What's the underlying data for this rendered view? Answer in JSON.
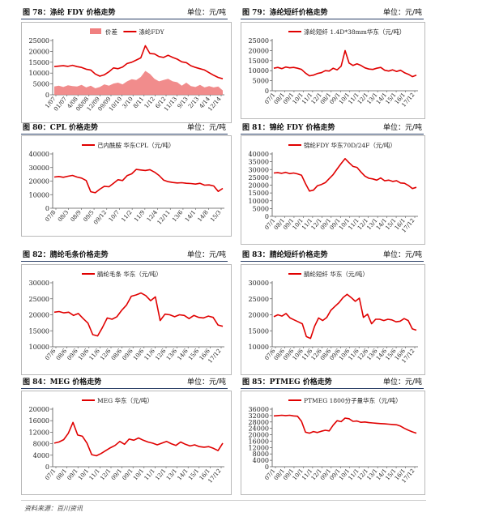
{
  "footer": "资料来源：百川资讯",
  "panels": [
    {
      "id": "fig78",
      "title": "图 78：涤纶 FDY 价格走势",
      "unit": "单位：元/吨",
      "chart_data": {
        "type": "line",
        "legend": [
          "价差",
          "涤纶FDY"
        ],
        "legend_position": "top-center",
        "ylim": [
          0,
          25000
        ],
        "yticks": [
          0,
          5000,
          10000,
          15000,
          20000,
          25000
        ],
        "xticks": [
          "1/07",
          "01/07",
          "4/08",
          "08/08",
          "12/09",
          "09/09",
          "10/10",
          "3/10",
          "8/11",
          "1/12",
          "6/12",
          "11/13",
          "9/13",
          "2/13",
          "4/14",
          "12/14"
        ],
        "series": [
          {
            "name": "涤纶FDY",
            "color": "#e00000",
            "kind": "line",
            "values": [
              13000,
              13200,
              13400,
              13100,
              13600,
              13000,
              12600,
              11800,
              11400,
              9600,
              8600,
              9200,
              10600,
              12400,
              12000,
              12800,
              14400,
              15000,
              16000,
              17000,
              22600,
              19000,
              18800,
              17600,
              17200,
              18200,
              17200,
              16400,
              15200,
              14800,
              13400,
              12600,
              12000,
              11400,
              10200,
              9000,
              8000,
              7400
            ]
          },
          {
            "name": "价差",
            "color": "#f08080",
            "kind": "area",
            "values": [
              3800,
              4200,
              3600,
              4400,
              4000,
              3800,
              4600,
              3400,
              4200,
              3000,
              3600,
              4800,
              4200,
              5200,
              5600,
              4800,
              6200,
              7200,
              6800,
              8200,
              11000,
              9600,
              7400,
              6200,
              6800,
              7400,
              6200,
              5800,
              4200,
              5600,
              4000,
              3600,
              4600,
              3400,
              4000,
              3400,
              3800,
              2000
            ]
          }
        ]
      }
    },
    {
      "id": "fig79",
      "title": "图 79：涤纶短纤价格走势",
      "unit": "单位：元/吨",
      "chart_data": {
        "type": "line",
        "legend": [
          "涤纶短纤 1.4D*38mm华东（元/吨）"
        ],
        "legend_position": "top-center",
        "ylim": [
          0,
          25000
        ],
        "yticks": [
          0,
          5000,
          10000,
          15000,
          20000,
          25000
        ],
        "xticks": [
          "07/1",
          "08/1",
          "09/1",
          "10/1",
          "11/1",
          "12/1",
          "08/1",
          "09/1",
          "10/1",
          "11/1",
          "12/1",
          "13/1",
          "14/1",
          "15/1",
          "16/1",
          "17/12"
        ],
        "series": [
          {
            "name": "涤纶短纤 1.4D*38mm华东（元/吨）",
            "color": "#e00000",
            "kind": "line",
            "values": [
              11200,
              11600,
              11000,
              11800,
              11400,
              11600,
              11200,
              10600,
              8800,
              7400,
              7800,
              8600,
              9000,
              10000,
              9800,
              11200,
              10400,
              12200,
              20000,
              13800,
              12600,
              13400,
              12600,
              11400,
              10800,
              10600,
              11200,
              11600,
              10200,
              9800,
              10400,
              9600,
              10200,
              9000,
              8200,
              7000,
              7800
            ]
          }
        ]
      }
    },
    {
      "id": "fig80",
      "title": "图 80：CPL 价格走势",
      "unit": "单位：元/吨",
      "chart_data": {
        "type": "line",
        "legend": [
          "己内酰胺 华东CPL（元/吨）"
        ],
        "legend_position": "top-center",
        "ylim": [
          0,
          40000
        ],
        "yticks": [
          0,
          10000,
          20000,
          30000,
          40000
        ],
        "xticks": [
          "07/8",
          "08/3",
          "08/9",
          "09/5",
          "09/12",
          "10/7",
          "11/2",
          "11/9",
          "12/4",
          "12/11",
          "13/6",
          "14/1",
          "14/8",
          "15/3"
        ],
        "series": [
          {
            "name": "己内酰胺 华东CPL（元/吨）",
            "color": "#e00000",
            "kind": "line",
            "values": [
              23000,
              23400,
              22800,
              23600,
              24200,
              23000,
              22200,
              20400,
              12200,
              11400,
              14000,
              16200,
              15800,
              18400,
              21000,
              20400,
              24000,
              25400,
              28600,
              28200,
              27800,
              28400,
              26600,
              24200,
              20800,
              19600,
              19000,
              18600,
              18800,
              18400,
              18200,
              17800,
              18400,
              17000,
              17200,
              16400,
              12400,
              14600
            ]
          }
        ]
      }
    },
    {
      "id": "fig81",
      "title": "图 81：锦纶 FDY 价格走势",
      "unit": "单位：元/吨",
      "chart_data": {
        "type": "line",
        "legend": [
          "锦纶FDY 华东70D/24F（元/吨）"
        ],
        "legend_position": "top-center",
        "ylim": [
          0,
          40000
        ],
        "yticks": [
          0,
          5000,
          10000,
          15000,
          20000,
          25000,
          30000,
          35000,
          40000
        ],
        "xticks": [
          "07/1",
          "08/1",
          "09/1",
          "10/1",
          "11/1",
          "12/1",
          "09/1",
          "09/1",
          "10/1",
          "11/1",
          "12/1",
          "13/1",
          "14/1",
          "15/1",
          "16/1",
          "17/12"
        ],
        "series": [
          {
            "name": "锦纶FDY 华东70D/24F（元/吨）",
            "color": "#e00000",
            "kind": "line",
            "values": [
              27800,
              28000,
              27600,
              28200,
              27400,
              27800,
              27200,
              26400,
              21000,
              16200,
              16800,
              19600,
              20400,
              21600,
              24200,
              26800,
              30400,
              33800,
              37000,
              34400,
              32000,
              31400,
              28400,
              25800,
              24400,
              24000,
              23200,
              24600,
              22800,
              23200,
              22400,
              22800,
              21400,
              21200,
              19800,
              17800,
              18600
            ]
          }
        ]
      }
    },
    {
      "id": "fig82",
      "title": "图 82：腈纶毛条价格走势",
      "unit": "单位：元/吨",
      "chart_data": {
        "type": "line",
        "legend": [
          "腈纶毛条 华东（元/吨）"
        ],
        "legend_position": "top-center",
        "ylim": [
          10000,
          30000
        ],
        "yticks": [
          10000,
          15000,
          20000,
          25000,
          30000
        ],
        "xticks": [
          "07/6",
          "08/6",
          "09/6",
          "10/6",
          "11/6",
          "12/6",
          "08/6",
          "09/6",
          "10/6",
          "11/6",
          "12/6",
          "13/6",
          "14/6",
          "15/6",
          "16/6",
          "17/12"
        ],
        "series": [
          {
            "name": "腈纶毛条 华东（元/吨）",
            "color": "#e00000",
            "kind": "line",
            "values": [
              20800,
              21000,
              20600,
              20800,
              19800,
              20400,
              18800,
              17400,
              13800,
              13400,
              16000,
              19000,
              18600,
              19400,
              21400,
              23000,
              25800,
              26200,
              26800,
              26000,
              24400,
              25600,
              18200,
              20200,
              20000,
              19400,
              20000,
              19800,
              18800,
              19800,
              19200,
              19000,
              19600,
              19200,
              16800,
              16400
            ]
          }
        ]
      }
    },
    {
      "id": "fig83",
      "title": "图 83：腈纶短纤价格走势",
      "unit": "单位：元/吨",
      "chart_data": {
        "type": "line",
        "legend": [
          "腈纶短纤 华东（元/吨）"
        ],
        "legend_position": "top-center",
        "ylim": [
          10000,
          30000
        ],
        "yticks": [
          10000,
          15000,
          20000,
          25000,
          30000
        ],
        "xticks": [
          "07/6",
          "08/6",
          "09/6",
          "10/6",
          "11/6",
          "12/6",
          "08/6",
          "09/6",
          "10/6",
          "11/6",
          "12/6",
          "13/6",
          "14/6",
          "15/6",
          "16/6",
          "17/12"
        ],
        "series": [
          {
            "name": "腈纶短纤 华东（元/吨）",
            "color": "#e00000",
            "kind": "line",
            "values": [
              19400,
              20000,
              19600,
              20400,
              19000,
              18400,
              17800,
              17200,
              13200,
              12600,
              16400,
              19000,
              18200,
              19200,
              21400,
              22600,
              23800,
              25400,
              26400,
              25400,
              24200,
              25200,
              19200,
              20200,
              17200,
              18600,
              18600,
              18200,
              18600,
              18400,
              17800,
              18000,
              18800,
              18200,
              15600,
              15200
            ]
          }
        ]
      }
    },
    {
      "id": "fig84",
      "title": "图 84：MEG 价格走势",
      "unit": "单位：元/吨",
      "chart_data": {
        "type": "line",
        "legend": [
          "MEG 华东（元/吨）"
        ],
        "legend_position": "top-center",
        "ylim": [
          0,
          20000
        ],
        "yticks": [
          0,
          4000,
          8000,
          12000,
          16000,
          20000
        ],
        "xticks": [
          "07/1",
          "08/1",
          "09/1",
          "10/1",
          "11/1",
          "12/1",
          "09/1",
          "09/1",
          "10/1",
          "11/1",
          "12/1",
          "13/1",
          "14/1",
          "15/1",
          "16/1",
          "17/12"
        ],
        "series": [
          {
            "name": "MEG 华东（元/吨）",
            "color": "#e00000",
            "kind": "line",
            "values": [
              8200,
              8600,
              9400,
              11600,
              15400,
              11000,
              10600,
              8200,
              4200,
              3800,
              4600,
              5600,
              6600,
              7400,
              8800,
              7800,
              9600,
              9200,
              10000,
              9200,
              8600,
              8200,
              7600,
              8200,
              8800,
              8000,
              7400,
              8600,
              7800,
              7200,
              7600,
              7000,
              6800,
              7000,
              6400,
              5600,
              8200
            ]
          }
        ]
      }
    },
    {
      "id": "fig85",
      "title": "图 85：PTMEG 价格走势",
      "unit": "单位：元/吨",
      "chart_data": {
        "type": "line",
        "legend": [
          "PTMEG 1800分子量华东（元/吨）"
        ],
        "legend_position": "top-center",
        "ylim": [
          0,
          36000
        ],
        "yticks": [
          0,
          4000,
          8000,
          12000,
          16000,
          20000,
          24000,
          28000,
          32000,
          36000
        ],
        "xticks": [
          "07/1",
          "08/1",
          "09/1",
          "10/1",
          "11/1",
          "12/1",
          "09/1",
          "09/1",
          "10/1",
          "11/1",
          "12/1",
          "13/1",
          "14/1",
          "15/1",
          "16/1",
          "17/12"
        ],
        "series": [
          {
            "name": "PTMEG 1800分子量华东（元/吨）",
            "color": "#e00000",
            "kind": "line",
            "values": [
              31800,
              32000,
              32200,
              32000,
              32200,
              31800,
              31600,
              28400,
              21600,
              21000,
              22000,
              21400,
              22200,
              22800,
              22400,
              26000,
              28800,
              28200,
              30400,
              30000,
              28400,
              28600,
              27800,
              28000,
              27600,
              27400,
              27200,
              27000,
              26800,
              26600,
              26400,
              26200,
              25400,
              24000,
              22800,
              21800,
              21000
            ]
          }
        ]
      }
    }
  ]
}
